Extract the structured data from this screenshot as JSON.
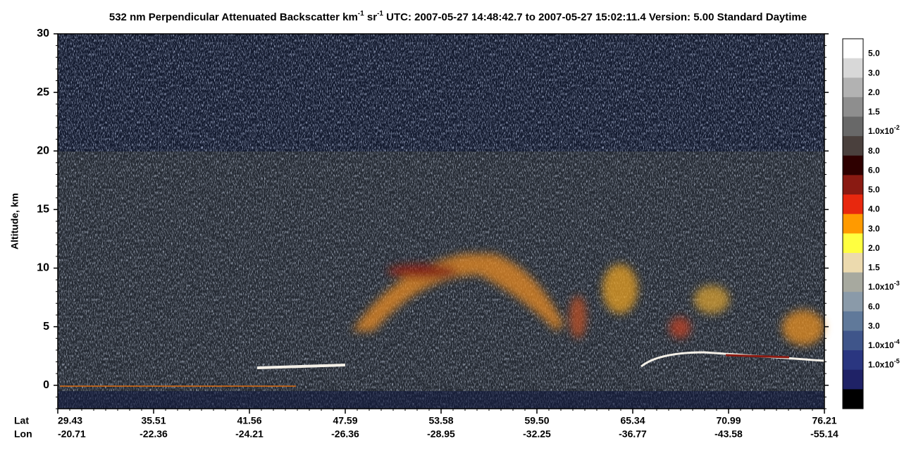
{
  "chart_data": {
    "type": "curtain",
    "title": {
      "parts": [
        {
          "text": "532 nm Perpendicular Attenuated Backscatter km"
        },
        {
          "sup": "-1"
        },
        {
          "text": " sr"
        },
        {
          "sup": "-1"
        },
        {
          "text": "  UTC: 2007-05-27 14:48:42.7 to 2007-05-27 15:02:11.4  Version: 5.00 Standard Daytime"
        }
      ]
    },
    "ylabel": "Altitude, km",
    "ylim": [
      -2,
      30
    ],
    "yticks": [
      0,
      5,
      10,
      15,
      20,
      25,
      30
    ],
    "x_rows": [
      {
        "name": "Lat",
        "values": [
          29.43,
          35.51,
          41.56,
          47.59,
          53.58,
          59.5,
          65.34,
          70.99,
          76.21
        ]
      },
      {
        "name": "Lon",
        "values": [
          -20.71,
          -22.36,
          -24.21,
          -26.36,
          -28.95,
          -32.25,
          -36.77,
          -43.58,
          -55.14
        ]
      }
    ],
    "colorbar": {
      "colors": [
        "#ffffff",
        "#d8d8d8",
        "#b2b2b2",
        "#8e8e8e",
        "#686868",
        "#4a403d",
        "#2e0000",
        "#8a1a12",
        "#e8280e",
        "#ff9a00",
        "#ffff40",
        "#ecdaae",
        "#a7a99f",
        "#8a9aa9",
        "#60799a",
        "#3f558a",
        "#2a3680",
        "#1f2266",
        "#000000"
      ],
      "labels": [
        {
          "text": "5.0"
        },
        {
          "text": "3.0"
        },
        {
          "text": "2.0"
        },
        {
          "text": "1.5"
        },
        {
          "text": "1.0x10",
          "sup": "-2"
        },
        {
          "text": "8.0"
        },
        {
          "text": "6.0"
        },
        {
          "text": "5.0"
        },
        {
          "text": "4.0"
        },
        {
          "text": "3.0"
        },
        {
          "text": "2.0"
        },
        {
          "text": "1.5"
        },
        {
          "text": "1.0x10",
          "sup": "-3"
        },
        {
          "text": "6.0"
        },
        {
          "text": "3.0"
        },
        {
          "text": "1.0x10",
          "sup": "-4"
        },
        {
          "text": "1.0x10",
          "sup": "-5"
        }
      ]
    }
  }
}
